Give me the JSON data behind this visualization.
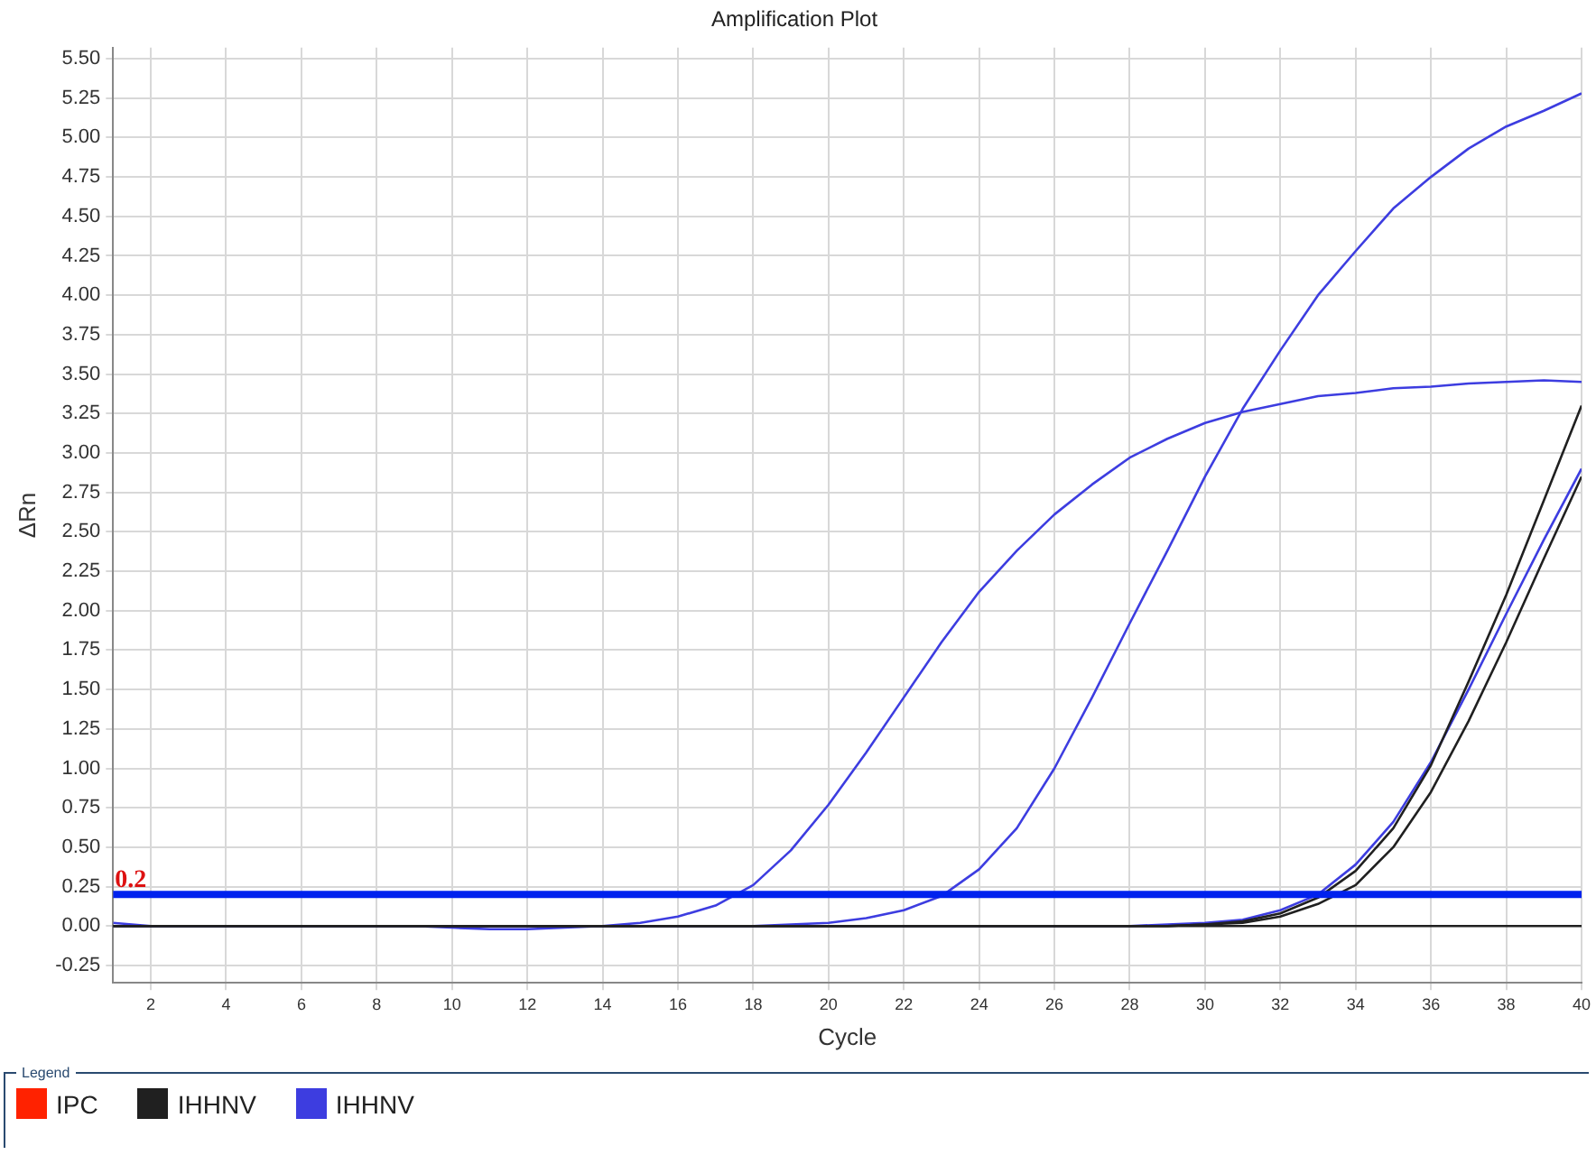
{
  "chart_data": {
    "type": "line",
    "title": "Amplification Plot",
    "xlabel": "Cycle",
    "ylabel": "ΔRn",
    "legend_title": "Legend",
    "x": [
      1,
      2,
      3,
      4,
      5,
      6,
      7,
      8,
      9,
      10,
      11,
      12,
      13,
      14,
      15,
      16,
      17,
      18,
      19,
      20,
      21,
      22,
      23,
      24,
      25,
      26,
      27,
      28,
      29,
      30,
      31,
      32,
      33,
      34,
      35,
      36,
      37,
      38,
      39,
      40
    ],
    "series": [
      {
        "name": "IPC",
        "color": "#ff2200",
        "values": [
          null,
          null,
          null,
          null,
          null,
          null,
          null,
          null,
          null,
          null,
          null,
          null,
          null,
          null,
          null,
          null,
          null,
          null,
          null,
          null,
          null,
          null,
          null,
          null,
          null,
          null,
          null,
          null,
          null,
          null,
          null,
          null,
          null,
          null,
          null,
          null,
          null,
          null,
          null,
          null
        ]
      },
      {
        "name": "IHHNV",
        "color": "#202020",
        "values": [
          0,
          0,
          0,
          0,
          0,
          0,
          0,
          0,
          0,
          0,
          0,
          0,
          0,
          0,
          0,
          0,
          0,
          0,
          0,
          0,
          0,
          0,
          0,
          0,
          0,
          0,
          0,
          0,
          0,
          0.01,
          0.03,
          0.08,
          0.18,
          0.35,
          0.62,
          1.02,
          1.55,
          2.1,
          2.7,
          3.3
        ]
      },
      {
        "color": "#202020",
        "values": [
          0,
          0,
          0,
          0,
          0,
          0,
          0,
          0,
          0,
          0,
          0,
          0,
          0,
          0,
          0,
          0,
          0,
          0,
          0,
          0,
          0,
          0,
          0,
          0,
          0,
          0,
          0,
          0,
          0,
          0.01,
          0.02,
          0.06,
          0.14,
          0.26,
          0.5,
          0.85,
          1.3,
          1.8,
          2.33,
          2.85
        ]
      },
      {
        "color": "#202020",
        "values": [
          0,
          0,
          0,
          0,
          0,
          0,
          0,
          0,
          0,
          0,
          0,
          0,
          0,
          0,
          0,
          0,
          0,
          0,
          0,
          0,
          0,
          0,
          0,
          0,
          0,
          0,
          0,
          0,
          0,
          0,
          0,
          0,
          0,
          0,
          0,
          0,
          0,
          0,
          0,
          0
        ]
      },
      {
        "name": "IHHNV",
        "color": "#3d3de0",
        "values": [
          0.02,
          0,
          0,
          0,
          0,
          0,
          0,
          0,
          0,
          -0.01,
          -0.02,
          -0.02,
          -0.01,
          0,
          0.02,
          0.06,
          0.13,
          0.26,
          0.48,
          0.77,
          1.1,
          1.45,
          1.8,
          2.12,
          2.38,
          2.61,
          2.8,
          2.97,
          3.09,
          3.19,
          3.26,
          3.31,
          3.36,
          3.38,
          3.41,
          3.42,
          3.44,
          3.45,
          3.46,
          3.45
        ]
      },
      {
        "color": "#3d3de0",
        "values": [
          0,
          0,
          0,
          0,
          0,
          0,
          0,
          0,
          0,
          0,
          0,
          0,
          0,
          0,
          0,
          0,
          0,
          0,
          0.01,
          0.02,
          0.05,
          0.1,
          0.19,
          0.36,
          0.62,
          1.0,
          1.45,
          1.92,
          2.38,
          2.85,
          3.28,
          3.65,
          4.0,
          4.28,
          4.55,
          4.75,
          4.93,
          5.07,
          5.17,
          5.28
        ]
      },
      {
        "color": "#3d3de0",
        "values": [
          0,
          0,
          0,
          0,
          0,
          0,
          0,
          0,
          0,
          0,
          0,
          0,
          0,
          0,
          0,
          0,
          0,
          0,
          0,
          0,
          0,
          0,
          0,
          0,
          0,
          0,
          0,
          0,
          0.01,
          0.02,
          0.04,
          0.1,
          0.2,
          0.39,
          0.66,
          1.04,
          1.5,
          1.98,
          2.45,
          2.9
        ]
      }
    ],
    "ref_lines": [
      {
        "axis": "y",
        "value": 0.2,
        "label": "0.2",
        "color": "#0022ee"
      }
    ],
    "xlim": [
      1,
      40
    ],
    "xticks": [
      2,
      4,
      6,
      8,
      10,
      12,
      14,
      16,
      18,
      20,
      22,
      24,
      26,
      28,
      30,
      32,
      34,
      36,
      38,
      40
    ],
    "ylim": [
      -0.36,
      5.57
    ],
    "yticks": [
      -0.25,
      {
        "value": 0,
        "label": "0.00"
      },
      0.25,
      {
        "value": 0.5,
        "label": "0.50"
      },
      0.75,
      {
        "value": 1,
        "label": "1.00"
      },
      1.25,
      {
        "value": 1.5,
        "label": "1.50"
      },
      1.75,
      {
        "value": 2,
        "label": "2.00"
      },
      2.25,
      {
        "value": 2.5,
        "label": "2.50"
      },
      2.75,
      {
        "value": 3,
        "label": "3.00"
      },
      3.25,
      {
        "value": 3.5,
        "label": "3.50"
      },
      3.75,
      {
        "value": 4,
        "label": "4.00"
      },
      4.25,
      {
        "value": 4.5,
        "label": "4.50"
      },
      4.75,
      {
        "value": 5,
        "label": "5.00"
      },
      5.25,
      {
        "value": 5.5,
        "label": "5.50"
      }
    ],
    "grid": true,
    "legend": "bottom",
    "marker": "none",
    "line_style": "solid"
  }
}
